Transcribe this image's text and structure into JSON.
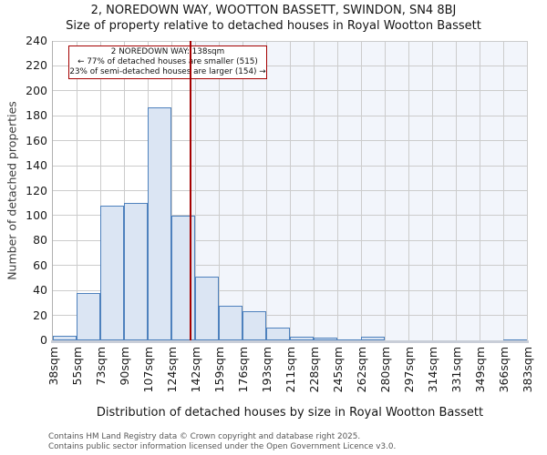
{
  "header": {
    "title": "2, NOREDOWN WAY, WOOTTON BASSETT, SWINDON, SN4 8BJ",
    "subtitle": "Size of property relative to detached houses in Royal Wootton Bassett"
  },
  "chart_data": {
    "type": "bar",
    "title": "2, NOREDOWN WAY, WOOTTON BASSETT, SWINDON, SN4 8BJ",
    "subtitle": "Size of property relative to detached houses in Royal Wootton Bassett",
    "xlabel": "Distribution of detached houses by size in Royal Wootton Bassett",
    "ylabel": "Number of detached properties",
    "bin_edges_sqm": [
      38,
      55,
      73,
      90,
      107,
      124,
      142,
      159,
      176,
      193,
      211,
      228,
      245,
      262,
      280,
      297,
      314,
      331,
      349,
      366,
      383
    ],
    "x_tick_labels": [
      "38sqm",
      "55sqm",
      "73sqm",
      "90sqm",
      "107sqm",
      "124sqm",
      "142sqm",
      "159sqm",
      "176sqm",
      "193sqm",
      "211sqm",
      "228sqm",
      "245sqm",
      "262sqm",
      "280sqm",
      "297sqm",
      "314sqm",
      "331sqm",
      "349sqm",
      "366sqm",
      "383sqm"
    ],
    "values": [
      4,
      38,
      108,
      110,
      187,
      100,
      51,
      28,
      23,
      10,
      3,
      2,
      1,
      3,
      0,
      0,
      0,
      0,
      0,
      1
    ],
    "ylim": [
      0,
      240
    ],
    "ytick_step": 20,
    "y_tick_labels": [
      "0",
      "20",
      "40",
      "60",
      "80",
      "100",
      "120",
      "140",
      "160",
      "180",
      "200",
      "220",
      "240"
    ],
    "grid": true,
    "marker": {
      "value_sqm": 138,
      "color": "#a40000"
    },
    "annotation": {
      "line1": "2 NOREDOWN WAY: 138sqm",
      "line2": "← 77% of detached houses are smaller (515)",
      "line3": "23% of semi-detached houses are larger (154) →"
    },
    "colors": {
      "bar_fill": "#dbe5f3",
      "bar_edge": "#4e81bd",
      "grid": "#cccccc",
      "shade_right_of_marker": "#f2f5fb",
      "marker_red": "#a40000"
    }
  },
  "footer": {
    "line1": "Contains HM Land Registry data © Crown copyright and database right 2025.",
    "line2": "Contains public sector information licensed under the Open Government Licence v3.0."
  }
}
